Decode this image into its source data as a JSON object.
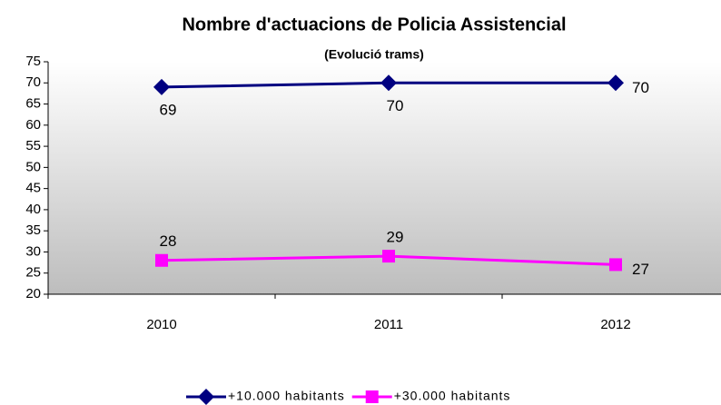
{
  "chart_data": {
    "type": "line",
    "title": "Nombre d'actuacions de Policia Assistencial",
    "subtitle": "(Evolució trams)",
    "categories": [
      "2010",
      "2011",
      "2012"
    ],
    "series": [
      {
        "name": "+10.000 habitants",
        "color": "#000080",
        "marker": "diamond",
        "values": [
          69,
          70,
          70
        ]
      },
      {
        "name": "+30.000 habitants",
        "color": "#ff00ff",
        "marker": "square",
        "values": [
          28,
          29,
          27
        ]
      }
    ],
    "ylim": [
      20,
      75
    ],
    "yticks": [
      20,
      25,
      30,
      35,
      40,
      45,
      50,
      55,
      60,
      65,
      70,
      75
    ],
    "legend": "bottom"
  }
}
